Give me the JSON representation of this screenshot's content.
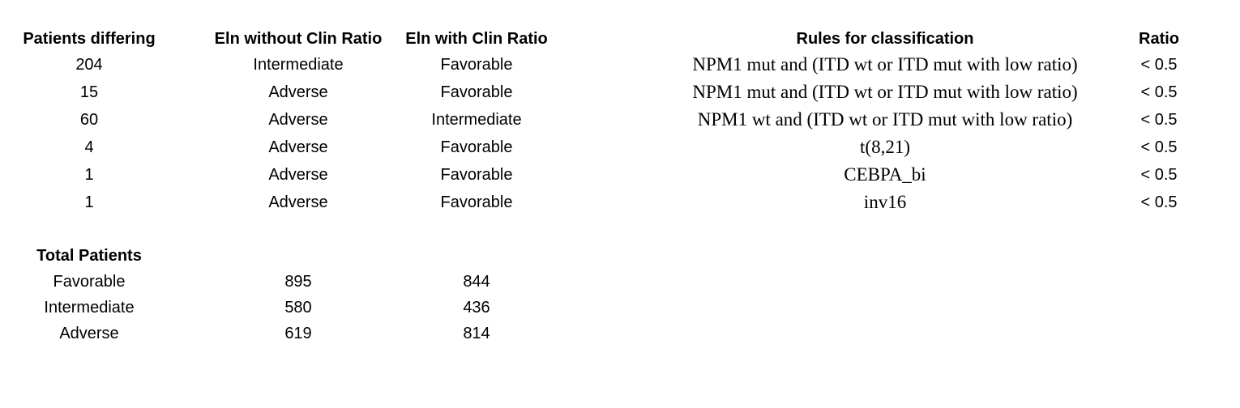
{
  "table": {
    "headers": {
      "patients": "Patients differing",
      "eln_without": "Eln without Clin Ratio",
      "eln_with": "Eln with Clin Ratio",
      "rules": "Rules for classification",
      "ratio": "Ratio"
    },
    "rows": [
      {
        "patients": "204",
        "eln_without": "Intermediate",
        "eln_with": "Favorable",
        "rule": "NPM1 mut and (ITD wt or ITD mut with low ratio)",
        "ratio": "< 0.5"
      },
      {
        "patients": "15",
        "eln_without": "Adverse",
        "eln_with": "Favorable",
        "rule": "NPM1 mut and (ITD wt or ITD mut with low ratio)",
        "ratio": "< 0.5"
      },
      {
        "patients": "60",
        "eln_without": "Adverse",
        "eln_with": "Intermediate",
        "rule": "NPM1 wt and (ITD wt or ITD mut with low ratio)",
        "ratio": "< 0.5"
      },
      {
        "patients": "4",
        "eln_without": "Adverse",
        "eln_with": "Favorable",
        "rule": "t(8,21)",
        "ratio": "< 0.5"
      },
      {
        "patients": "1",
        "eln_without": "Adverse",
        "eln_with": "Favorable",
        "rule": "CEBPA_bi",
        "ratio": "< 0.5"
      },
      {
        "patients": "1",
        "eln_without": "Adverse",
        "eln_with": "Favorable",
        "rule": "inv16",
        "ratio": "< 0.5"
      }
    ]
  },
  "totals": {
    "title": "Total Patients",
    "rows": [
      {
        "label": "Favorable",
        "without": "895",
        "with": "844"
      },
      {
        "label": "Intermediate",
        "without": "580",
        "with": "436"
      },
      {
        "label": "Adverse",
        "without": "619",
        "with": "814"
      }
    ]
  }
}
